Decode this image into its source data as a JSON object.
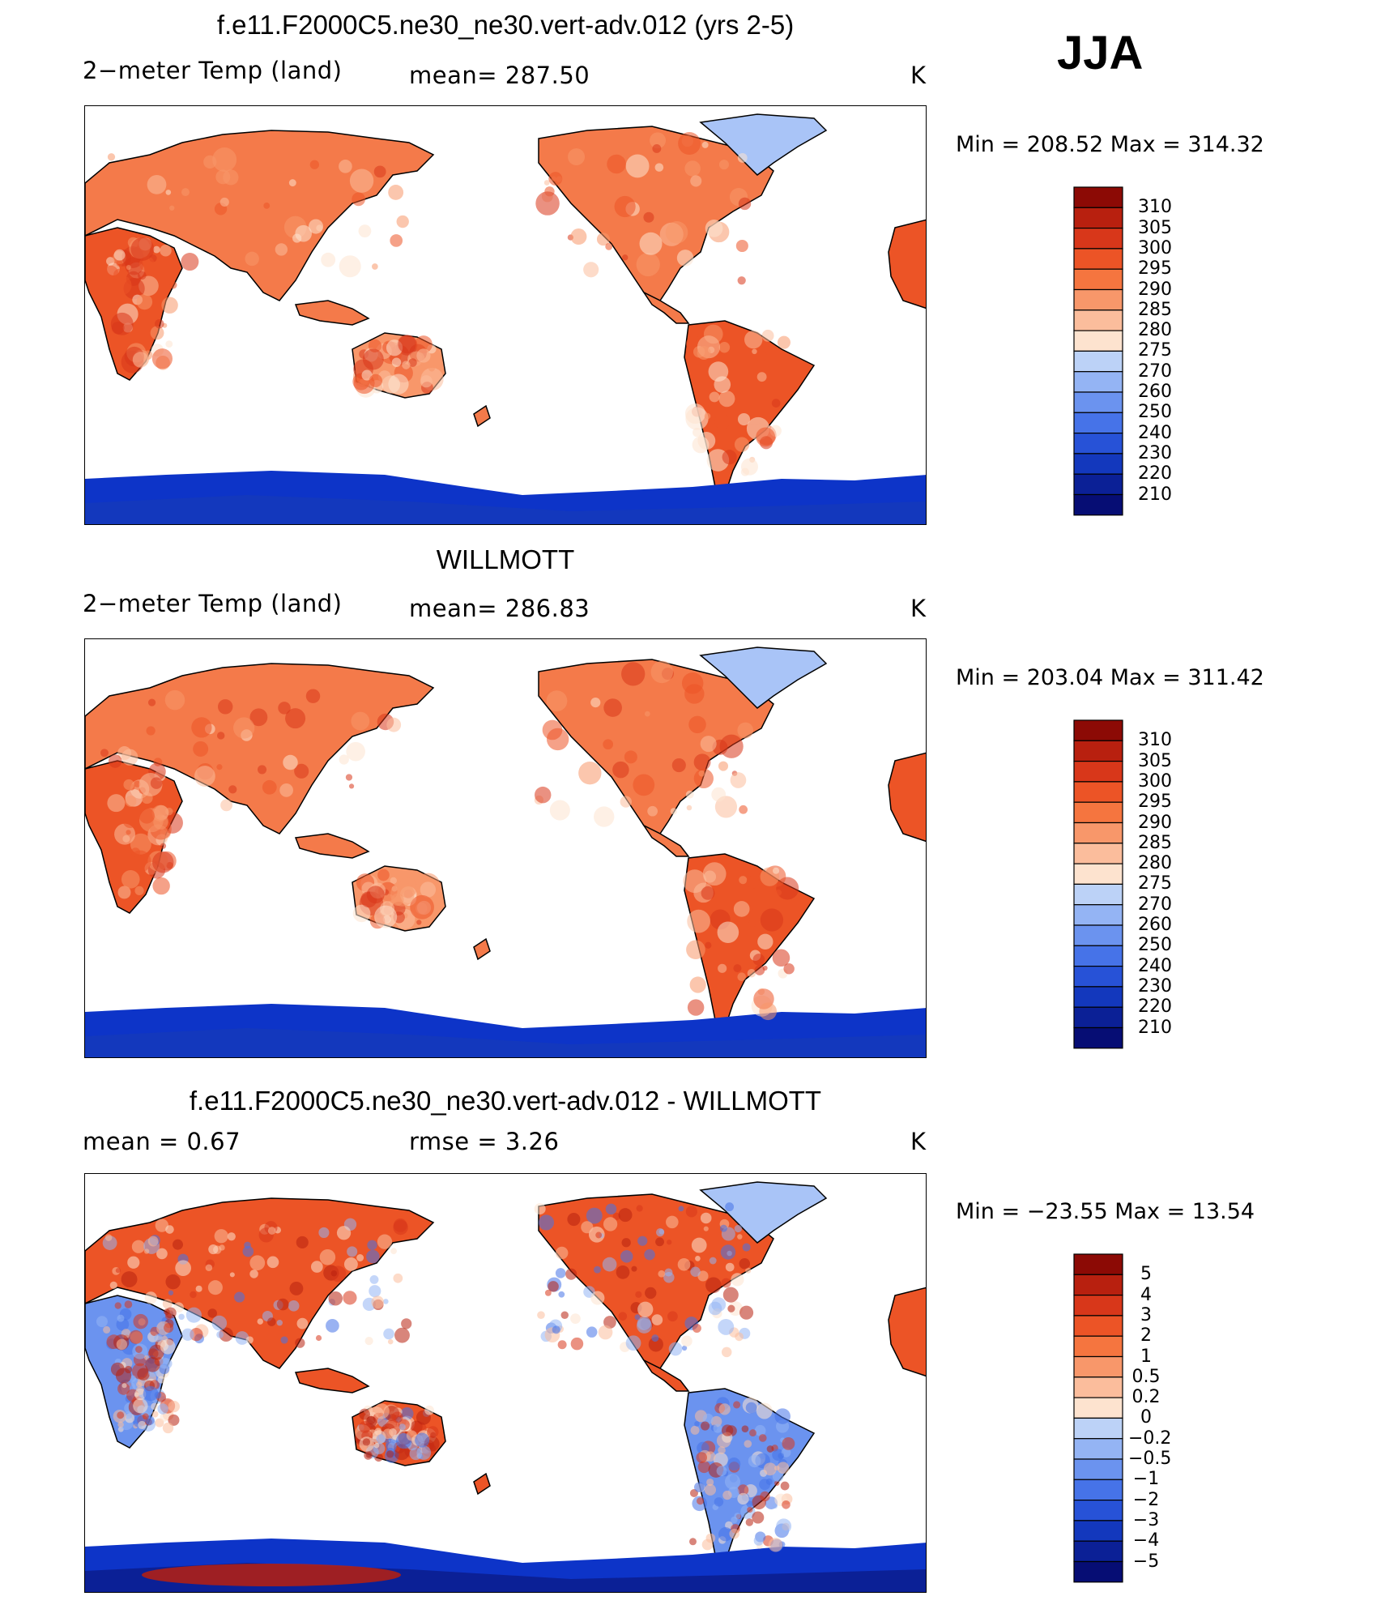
{
  "season": "JJA",
  "panels": [
    {
      "title": "f.e11.F2000C5.ne30_ne30.vert-adv.012 (yrs 2-5)",
      "left_label": "2−meter Temp (land)",
      "mid_label": "mean=  287.50",
      "units": "K",
      "stats": "Min  =  208.52  Max  =  314.32",
      "colorbar_levels": [
        "310",
        "305",
        "300",
        "295",
        "290",
        "285",
        "280",
        "275",
        "270",
        "260",
        "250",
        "240",
        "230",
        "220",
        "210"
      ],
      "kind": "abs"
    },
    {
      "title": "WILLMOTT",
      "left_label": "2−meter Temp (land)",
      "mid_label": "mean=  286.83",
      "units": "K",
      "stats": "Min  =  203.04  Max  =  311.42",
      "colorbar_levels": [
        "310",
        "305",
        "300",
        "295",
        "290",
        "285",
        "280",
        "275",
        "270",
        "260",
        "250",
        "240",
        "230",
        "220",
        "210"
      ],
      "kind": "abs"
    },
    {
      "title": "f.e11.F2000C5.ne30_ne30.vert-adv.012 - WILLMOTT",
      "left_label": "mean  =      0.67",
      "mid_label": "rmse  =      3.26",
      "units": "K",
      "stats": "Min  =  −23.55  Max  =     13.54",
      "colorbar_levels": [
        "5",
        "4",
        "3",
        "2",
        "1",
        "0.5",
        "0.2",
        "0",
        "−0.2",
        "−0.5",
        "−1",
        "−2",
        "−3",
        "−4",
        "−5"
      ],
      "kind": "diff"
    }
  ],
  "colors": {
    "scale": [
      "#0a0f7a",
      "#0a1fa8",
      "#0d34c8",
      "#1a4ee0",
      "#3a6ff0",
      "#5a8ef5",
      "#8fb0f7",
      "#bcd0f8",
      "#e0ebfb",
      "#fbe7d8",
      "#fbcab0",
      "#f8a682",
      "#f6855a",
      "#f2622f",
      "#e2421b",
      "#c32612",
      "#8c0a05"
    ],
    "land_warm": "#f26a3c",
    "ocean": "#ffffff"
  }
}
